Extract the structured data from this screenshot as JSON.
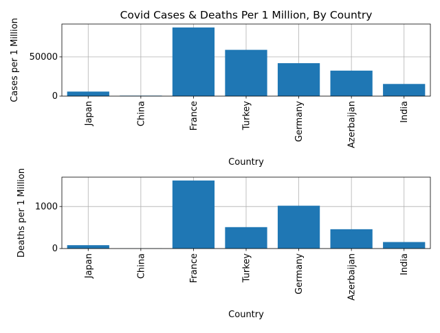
{
  "chart_data": [
    {
      "type": "bar",
      "title": "Covid Cases & Deaths Per 1 Million, By Country",
      "xlabel": "Country",
      "ylabel": "Cases per 1 Million",
      "categories": [
        "Japan",
        "China",
        "France",
        "Turkey",
        "Germany",
        "Azerbaijan",
        "India"
      ],
      "values": [
        5800,
        600,
        87500,
        59000,
        42000,
        32500,
        15500
      ],
      "ylim": [
        0,
        91900
      ],
      "yticks": [
        0,
        50000
      ],
      "ytick_labels": [
        "0",
        "50000"
      ],
      "grid": true,
      "bar_color": "#1f77b4"
    },
    {
      "type": "bar",
      "title": "",
      "xlabel": "Country",
      "ylabel": "Deaths per 1 Million",
      "categories": [
        "Japan",
        "China",
        "France",
        "Turkey",
        "Germany",
        "Azerbaijan",
        "India"
      ],
      "values": [
        80,
        3,
        1620,
        510,
        1020,
        460,
        155
      ],
      "ylim": [
        0,
        1700
      ],
      "yticks": [
        0,
        1000
      ],
      "ytick_labels": [
        "0",
        "1000"
      ],
      "grid": true,
      "bar_color": "#1f77b4"
    }
  ]
}
